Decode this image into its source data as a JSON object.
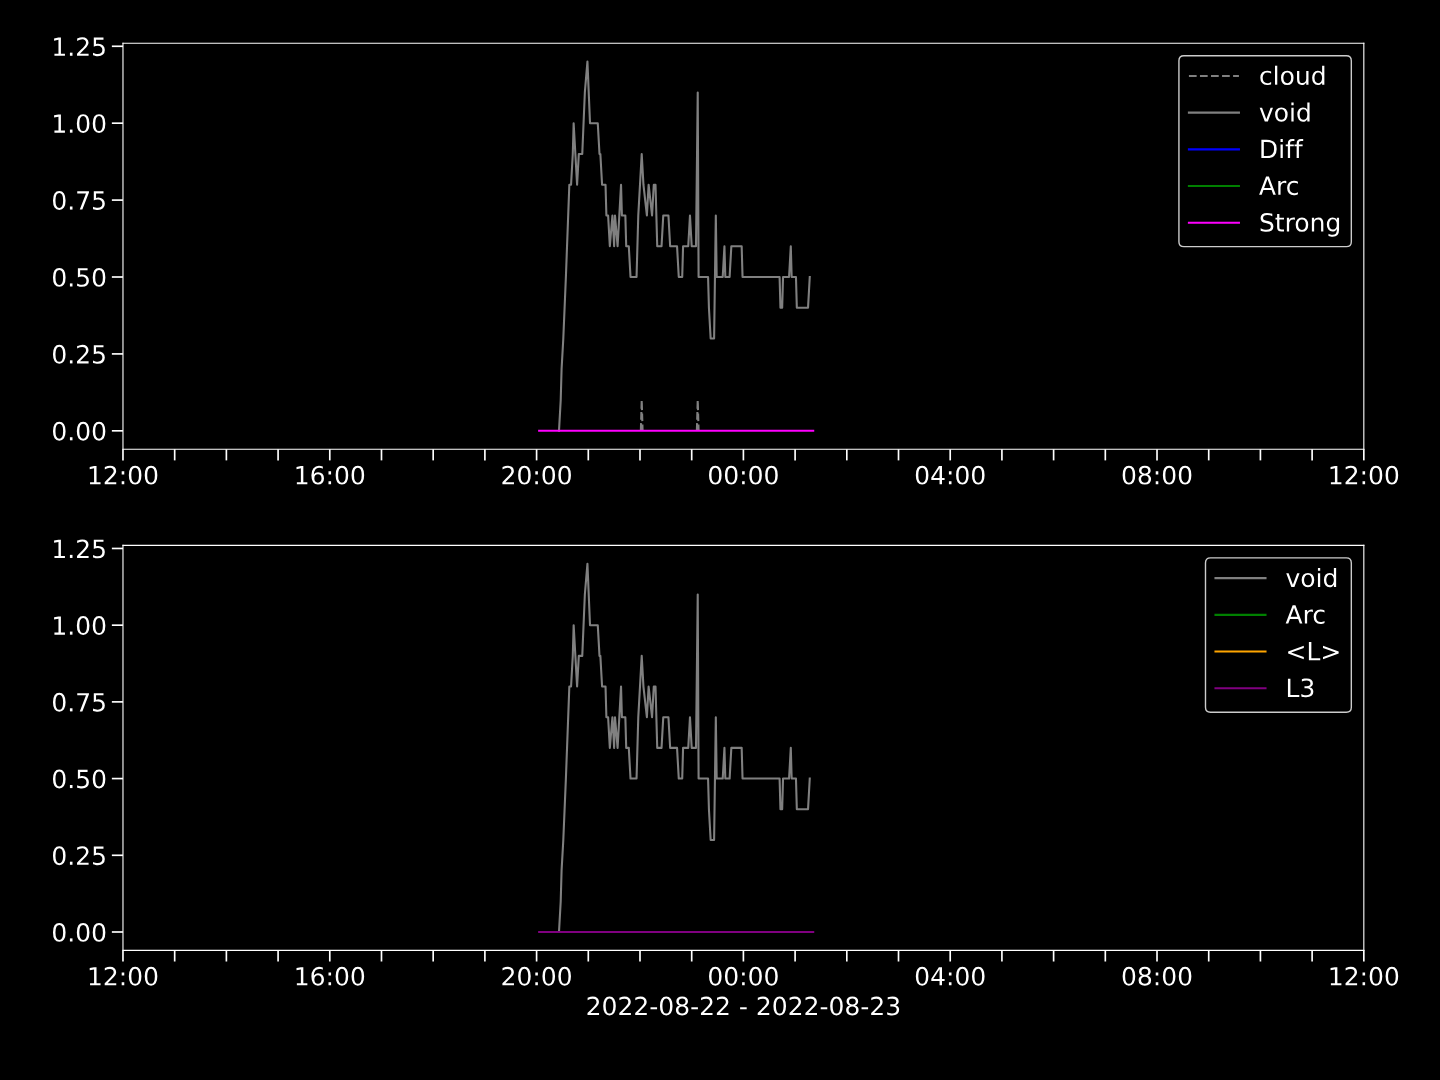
{
  "chart_data": [
    {
      "type": "line",
      "xlim": [
        "2022-08-22T12:00",
        "2022-08-23T12:00"
      ],
      "ylim": [
        -0.06,
        1.26
      ],
      "yticks": [
        {
          "value": 0,
          "label": "0.00"
        },
        {
          "value": 0.25,
          "label": "0.25"
        },
        {
          "value": 0.5,
          "label": "0.50"
        },
        {
          "value": 0.75,
          "label": "0.75"
        },
        {
          "value": 1,
          "label": "1.00"
        },
        {
          "value": 1.25,
          "label": "1.25"
        }
      ],
      "xticks": [
        {
          "value": "2022-08-22T12:00",
          "label": "12:00"
        },
        {
          "value": "2022-08-22T13:00",
          "label": null
        },
        {
          "value": "2022-08-22T14:00",
          "label": null
        },
        {
          "value": "2022-08-22T15:00",
          "label": null
        },
        {
          "value": "2022-08-22T16:00",
          "label": "16:00"
        },
        {
          "value": "2022-08-22T17:00",
          "label": null
        },
        {
          "value": "2022-08-22T18:00",
          "label": null
        },
        {
          "value": "2022-08-22T19:00",
          "label": null
        },
        {
          "value": "2022-08-22T20:00",
          "label": "20:00"
        },
        {
          "value": "2022-08-22T21:00",
          "label": null
        },
        {
          "value": "2022-08-22T22:00",
          "label": null
        },
        {
          "value": "2022-08-22T23:00",
          "label": null
        },
        {
          "value": "2022-08-23T00:00",
          "label": "00:00"
        },
        {
          "value": "2022-08-23T01:00",
          "label": null
        },
        {
          "value": "2022-08-23T02:00",
          "label": null
        },
        {
          "value": "2022-08-23T03:00",
          "label": null
        },
        {
          "value": "2022-08-23T04:00",
          "label": "04:00"
        },
        {
          "value": "2022-08-23T05:00",
          "label": null
        },
        {
          "value": "2022-08-23T06:00",
          "label": null
        },
        {
          "value": "2022-08-23T07:00",
          "label": null
        },
        {
          "value": "2022-08-23T08:00",
          "label": "08:00"
        },
        {
          "value": "2022-08-23T09:00",
          "label": null
        },
        {
          "value": "2022-08-23T10:00",
          "label": null
        },
        {
          "value": "2022-08-23T11:00",
          "label": null
        },
        {
          "value": "2022-08-23T12:00",
          "label": "12:00"
        }
      ],
      "grid": false,
      "legend": "top right",
      "marker": "none",
      "series": [
        {
          "name": "cloud",
          "color": "#808080",
          "line_style": "dashed",
          "x": [
            "2022-08-22T22:01",
            "2022-08-22T22:02",
            "2022-08-22T22:03",
            "2022-08-22T22:30",
            "2022-08-22T23:06",
            "2022-08-22T23:07",
            "2022-08-22T23:08"
          ],
          "values": [
            0,
            0.1,
            0,
            null,
            0,
            0.1,
            0
          ]
        },
        {
          "name": "void",
          "color": "#808080",
          "line_style": "solid",
          "x": [
            "2022-08-22T20:26",
            "2022-08-22T20:28",
            "2022-08-22T20:29",
            "2022-08-22T20:31",
            "2022-08-22T20:34",
            "2022-08-22T20:38",
            "2022-08-22T20:40",
            "2022-08-22T20:42",
            "2022-08-22T20:43",
            "2022-08-22T20:45",
            "2022-08-22T20:47",
            "2022-08-22T20:49",
            "2022-08-22T20:53",
            "2022-08-22T20:56",
            "2022-08-22T20:59",
            "2022-08-22T21:02",
            "2022-08-22T21:11",
            "2022-08-22T21:13",
            "2022-08-22T21:14",
            "2022-08-22T21:16",
            "2022-08-22T21:20",
            "2022-08-22T21:21",
            "2022-08-22T21:23",
            "2022-08-22T21:25",
            "2022-08-22T21:28",
            "2022-08-22T21:30",
            "2022-08-22T21:31",
            "2022-08-22T21:34",
            "2022-08-22T21:36",
            "2022-08-22T21:38",
            "2022-08-22T21:39",
            "2022-08-22T21:43",
            "2022-08-22T21:44",
            "2022-08-22T21:47",
            "2022-08-22T21:49",
            "2022-08-22T21:56",
            "2022-08-22T21:58",
            "2022-08-22T22:02",
            "2022-08-22T22:04",
            "2022-08-22T22:08",
            "2022-08-22T22:10",
            "2022-08-22T22:14",
            "2022-08-22T22:16",
            "2022-08-22T22:18",
            "2022-08-22T22:20",
            "2022-08-22T22:25",
            "2022-08-22T22:27",
            "2022-08-22T22:33",
            "2022-08-22T22:35",
            "2022-08-22T22:43",
            "2022-08-22T22:45",
            "2022-08-22T22:49",
            "2022-08-22T22:50",
            "2022-08-22T22:56",
            "2022-08-22T22:58",
            "2022-08-22T23:00",
            "2022-08-22T23:05",
            "2022-08-22T23:07",
            "2022-08-22T23:08",
            "2022-08-22T23:19",
            "2022-08-22T23:20",
            "2022-08-22T23:22",
            "2022-08-22T23:26",
            "2022-08-22T23:28",
            "2022-08-22T23:29",
            "2022-08-22T23:36",
            "2022-08-22T23:38",
            "2022-08-22T23:39",
            "2022-08-22T23:44",
            "2022-08-22T23:46",
            "2022-08-22T23:58",
            "2022-08-22T23:59",
            "2022-08-23T00:42",
            "2022-08-23T00:43",
            "2022-08-23T00:45",
            "2022-08-23T00:46",
            "2022-08-23T00:53",
            "2022-08-23T00:55",
            "2022-08-23T00:56",
            "2022-08-23T01:01",
            "2022-08-23T01:02",
            "2022-08-23T01:15",
            "2022-08-23T01:17"
          ],
          "values": [
            0,
            0.1,
            0.2,
            0.3,
            0.5,
            0.8,
            0.8,
            0.9,
            1.0,
            0.9,
            0.8,
            0.9,
            0.9,
            1.1,
            1.2,
            1.0,
            1.0,
            0.9,
            0.9,
            0.8,
            0.8,
            0.7,
            0.7,
            0.6,
            0.7,
            0.6,
            0.7,
            0.6,
            0.7,
            0.8,
            0.7,
            0.7,
            0.6,
            0.6,
            0.5,
            0.5,
            0.7,
            0.9,
            0.8,
            0.7,
            0.8,
            0.7,
            0.8,
            0.8,
            0.6,
            0.6,
            0.7,
            0.7,
            0.6,
            0.6,
            0.5,
            0.5,
            0.6,
            0.6,
            0.7,
            0.6,
            0.6,
            1.1,
            0.5,
            0.5,
            0.4,
            0.3,
            0.3,
            0.7,
            0.5,
            0.5,
            0.6,
            0.5,
            0.5,
            0.6,
            0.6,
            0.5,
            0.5,
            0.4,
            0.4,
            0.5,
            0.5,
            0.6,
            0.5,
            0.5,
            0.4,
            0.4,
            0.5
          ]
        },
        {
          "name": "Diff",
          "color": "#0000ff",
          "line_style": "solid"
        },
        {
          "name": "Arc",
          "color": "#008000",
          "line_style": "solid"
        },
        {
          "name": "Strong",
          "color": "#ff00ff",
          "line_style": "solid",
          "x": [
            "2022-08-22T20:03",
            "2022-08-23T01:21"
          ],
          "values": [
            0,
            0
          ]
        }
      ]
    },
    {
      "type": "line",
      "xlim": [
        "2022-08-22T12:00",
        "2022-08-23T12:00"
      ],
      "ylim": [
        -0.06,
        1.26
      ],
      "yticks": [
        {
          "value": 0,
          "label": "0.00"
        },
        {
          "value": 0.25,
          "label": "0.25"
        },
        {
          "value": 0.5,
          "label": "0.50"
        },
        {
          "value": 0.75,
          "label": "0.75"
        },
        {
          "value": 1,
          "label": "1.00"
        },
        {
          "value": 1.25,
          "label": "1.25"
        }
      ],
      "xticks": [
        {
          "value": "2022-08-22T12:00",
          "label": "12:00"
        },
        {
          "value": "2022-08-22T13:00",
          "label": null
        },
        {
          "value": "2022-08-22T14:00",
          "label": null
        },
        {
          "value": "2022-08-22T15:00",
          "label": null
        },
        {
          "value": "2022-08-22T16:00",
          "label": "16:00"
        },
        {
          "value": "2022-08-22T17:00",
          "label": null
        },
        {
          "value": "2022-08-22T18:00",
          "label": null
        },
        {
          "value": "2022-08-22T19:00",
          "label": null
        },
        {
          "value": "2022-08-22T20:00",
          "label": "20:00"
        },
        {
          "value": "2022-08-22T21:00",
          "label": null
        },
        {
          "value": "2022-08-22T22:00",
          "label": null
        },
        {
          "value": "2022-08-22T23:00",
          "label": null
        },
        {
          "value": "2022-08-23T00:00",
          "label": "00:00"
        },
        {
          "value": "2022-08-23T01:00",
          "label": null
        },
        {
          "value": "2022-08-23T02:00",
          "label": null
        },
        {
          "value": "2022-08-23T03:00",
          "label": null
        },
        {
          "value": "2022-08-23T04:00",
          "label": "04:00"
        },
        {
          "value": "2022-08-23T05:00",
          "label": null
        },
        {
          "value": "2022-08-23T06:00",
          "label": null
        },
        {
          "value": "2022-08-23T07:00",
          "label": null
        },
        {
          "value": "2022-08-23T08:00",
          "label": "08:00"
        },
        {
          "value": "2022-08-23T09:00",
          "label": null
        },
        {
          "value": "2022-08-23T10:00",
          "label": null
        },
        {
          "value": "2022-08-23T11:00",
          "label": null
        },
        {
          "value": "2022-08-23T12:00",
          "label": "12:00"
        }
      ],
      "xlabel": "2022-08-22 - 2022-08-23",
      "grid": false,
      "legend": "top right",
      "marker": "none",
      "series": [
        {
          "name": "void",
          "color": "#808080",
          "line_style": "solid",
          "x": [
            "2022-08-22T20:26",
            "2022-08-22T20:28",
            "2022-08-22T20:29",
            "2022-08-22T20:31",
            "2022-08-22T20:34",
            "2022-08-22T20:38",
            "2022-08-22T20:40",
            "2022-08-22T20:42",
            "2022-08-22T20:43",
            "2022-08-22T20:45",
            "2022-08-22T20:47",
            "2022-08-22T20:49",
            "2022-08-22T20:53",
            "2022-08-22T20:56",
            "2022-08-22T20:59",
            "2022-08-22T21:02",
            "2022-08-22T21:11",
            "2022-08-22T21:13",
            "2022-08-22T21:14",
            "2022-08-22T21:16",
            "2022-08-22T21:20",
            "2022-08-22T21:21",
            "2022-08-22T21:23",
            "2022-08-22T21:25",
            "2022-08-22T21:28",
            "2022-08-22T21:30",
            "2022-08-22T21:31",
            "2022-08-22T21:34",
            "2022-08-22T21:36",
            "2022-08-22T21:38",
            "2022-08-22T21:39",
            "2022-08-22T21:43",
            "2022-08-22T21:44",
            "2022-08-22T21:47",
            "2022-08-22T21:49",
            "2022-08-22T21:56",
            "2022-08-22T21:58",
            "2022-08-22T22:02",
            "2022-08-22T22:04",
            "2022-08-22T22:08",
            "2022-08-22T22:10",
            "2022-08-22T22:14",
            "2022-08-22T22:16",
            "2022-08-22T22:18",
            "2022-08-22T22:20",
            "2022-08-22T22:25",
            "2022-08-22T22:27",
            "2022-08-22T22:33",
            "2022-08-22T22:35",
            "2022-08-22T22:43",
            "2022-08-22T22:45",
            "2022-08-22T22:49",
            "2022-08-22T22:50",
            "2022-08-22T22:56",
            "2022-08-22T22:58",
            "2022-08-22T23:00",
            "2022-08-22T23:05",
            "2022-08-22T23:07",
            "2022-08-22T23:08",
            "2022-08-22T23:19",
            "2022-08-22T23:20",
            "2022-08-22T23:22",
            "2022-08-22T23:26",
            "2022-08-22T23:28",
            "2022-08-22T23:29",
            "2022-08-22T23:36",
            "2022-08-22T23:38",
            "2022-08-22T23:39",
            "2022-08-22T23:44",
            "2022-08-22T23:46",
            "2022-08-22T23:58",
            "2022-08-22T23:59",
            "2022-08-23T00:42",
            "2022-08-23T00:43",
            "2022-08-23T00:45",
            "2022-08-23T00:46",
            "2022-08-23T00:53",
            "2022-08-23T00:55",
            "2022-08-23T00:56",
            "2022-08-23T01:01",
            "2022-08-23T01:02",
            "2022-08-23T01:15",
            "2022-08-23T01:17"
          ],
          "values": [
            0,
            0.1,
            0.2,
            0.3,
            0.5,
            0.8,
            0.8,
            0.9,
            1.0,
            0.9,
            0.8,
            0.9,
            0.9,
            1.1,
            1.2,
            1.0,
            1.0,
            0.9,
            0.9,
            0.8,
            0.8,
            0.7,
            0.7,
            0.6,
            0.7,
            0.6,
            0.7,
            0.6,
            0.7,
            0.8,
            0.7,
            0.7,
            0.6,
            0.6,
            0.5,
            0.5,
            0.7,
            0.9,
            0.8,
            0.7,
            0.8,
            0.7,
            0.8,
            0.8,
            0.6,
            0.6,
            0.7,
            0.7,
            0.6,
            0.6,
            0.5,
            0.5,
            0.6,
            0.6,
            0.7,
            0.6,
            0.6,
            1.1,
            0.5,
            0.5,
            0.4,
            0.3,
            0.3,
            0.7,
            0.5,
            0.5,
            0.6,
            0.5,
            0.5,
            0.6,
            0.6,
            0.5,
            0.5,
            0.4,
            0.4,
            0.5,
            0.5,
            0.6,
            0.5,
            0.5,
            0.4,
            0.4,
            0.5
          ]
        },
        {
          "name": "Arc",
          "color": "#008000",
          "line_style": "solid"
        },
        {
          "name": "<L>",
          "color": "#ffa500",
          "line_style": "solid"
        },
        {
          "name": "L3",
          "color": "#800080",
          "line_style": "solid",
          "x": [
            "2022-08-22T20:03",
            "2022-08-23T01:21"
          ],
          "values": [
            0,
            0
          ]
        }
      ]
    }
  ]
}
